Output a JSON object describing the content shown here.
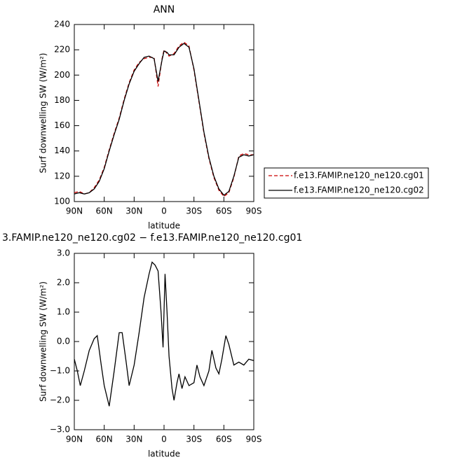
{
  "chart_data": [
    {
      "type": "line",
      "title": "ANN",
      "ylabel": "Surf downwelling SW (W/m²)",
      "xlabel": "latitude",
      "x": [
        90,
        85,
        80,
        75,
        70,
        65,
        60,
        55,
        50,
        45,
        40,
        35,
        30,
        25,
        20,
        15,
        10,
        6,
        2,
        0,
        -3,
        -5,
        -10,
        -15,
        -20,
        -25,
        -30,
        -35,
        -40,
        -45,
        -50,
        -55,
        -60,
        -65,
        -70,
        -75,
        -80,
        -85,
        -90
      ],
      "series": [
        {
          "name": "f.e13.FAMIP.ne120_ne120.cg01",
          "color": "#cc0000",
          "linestyle": "dashed",
          "values": [
            107,
            108,
            106,
            107,
            111,
            117,
            127,
            141,
            154,
            166,
            181,
            194,
            204,
            210,
            213,
            214,
            214,
            191,
            213,
            220,
            217,
            215,
            217,
            223,
            226,
            223,
            204,
            179,
            154,
            134,
            119,
            109,
            104,
            107,
            119,
            136,
            138,
            137,
            137
          ]
        },
        {
          "name": "f.e13.FAMIP.ne120_ne120.cg02",
          "color": "#000000",
          "linestyle": "solid",
          "values": [
            106,
            107,
            106,
            107,
            110,
            116,
            126,
            140,
            153,
            165,
            180,
            193,
            203,
            209,
            214,
            215,
            213,
            195,
            212,
            219,
            218,
            216,
            216,
            222,
            225,
            222,
            205,
            180,
            155,
            135,
            120,
            110,
            105,
            108,
            120,
            135,
            137,
            136,
            137
          ]
        }
      ],
      "xlim": [
        90,
        -90
      ],
      "xticks": [
        {
          "value": 90,
          "label": "90N"
        },
        {
          "value": 60,
          "label": "60N"
        },
        {
          "value": 30,
          "label": "30N"
        },
        0,
        {
          "value": -30,
          "label": "30S"
        },
        {
          "value": -60,
          "label": "60S"
        },
        {
          "value": -90,
          "label": "90S"
        }
      ],
      "ylim": [
        100,
        240
      ],
      "yticks": [
        100,
        120,
        140,
        160,
        180,
        200,
        220,
        240
      ],
      "legend": "right"
    },
    {
      "type": "line",
      "title": "3.FAMIP.ne120_ne120.cg02 − f.e13.FAMIP.ne120_ne120.cg01",
      "ylabel": "Surf downwelling SW (W/m²)",
      "xlabel": "latitude",
      "x": [
        90,
        87,
        84,
        80,
        75,
        70,
        67,
        63,
        60,
        55,
        50,
        45,
        42,
        38,
        35,
        30,
        25,
        20,
        15,
        12,
        9,
        6,
        3,
        1,
        -1,
        -3,
        -5,
        -8,
        -10,
        -13,
        -15,
        -18,
        -21,
        -25,
        -30,
        -33,
        -36,
        -40,
        -45,
        -48,
        -52,
        -55,
        -58,
        -62,
        -65,
        -70,
        -75,
        -80,
        -85,
        -90
      ],
      "values": [
        -0.6,
        -1.0,
        -1.5,
        -1.0,
        -0.3,
        0.1,
        0.2,
        -0.8,
        -1.5,
        -2.2,
        -1.0,
        0.3,
        0.3,
        -0.7,
        -1.5,
        -0.8,
        0.3,
        1.5,
        2.3,
        2.7,
        2.6,
        2.4,
        1.0,
        -0.2,
        2.3,
        1.0,
        -0.5,
        -1.6,
        -2.0,
        -1.4,
        -1.1,
        -1.6,
        -1.2,
        -1.5,
        -1.4,
        -0.8,
        -1.2,
        -1.5,
        -1.0,
        -0.3,
        -0.9,
        -1.1,
        -0.6,
        0.2,
        -0.1,
        -0.8,
        -0.7,
        -0.8,
        -0.6,
        -0.65
      ],
      "color": "#000000",
      "xlim": [
        90,
        -90
      ],
      "xticks": [
        {
          "value": 90,
          "label": "90N"
        },
        {
          "value": 60,
          "label": "60N"
        },
        {
          "value": 30,
          "label": "30N"
        },
        0,
        {
          "value": -30,
          "label": "30S"
        },
        {
          "value": -60,
          "label": "60S"
        },
        {
          "value": -90,
          "label": "90S"
        }
      ],
      "ylim": [
        -3,
        3
      ],
      "yticks": [
        {
          "value": -3,
          "label": "−3.0"
        },
        {
          "value": -2,
          "label": "−2.0"
        },
        {
          "value": -1,
          "label": "−1.0"
        },
        {
          "value": 0,
          "label": "0.0"
        },
        {
          "value": 1,
          "label": "1.0"
        },
        {
          "value": 2,
          "label": "2.0"
        },
        {
          "value": 3,
          "label": "3.0"
        }
      ]
    }
  ]
}
